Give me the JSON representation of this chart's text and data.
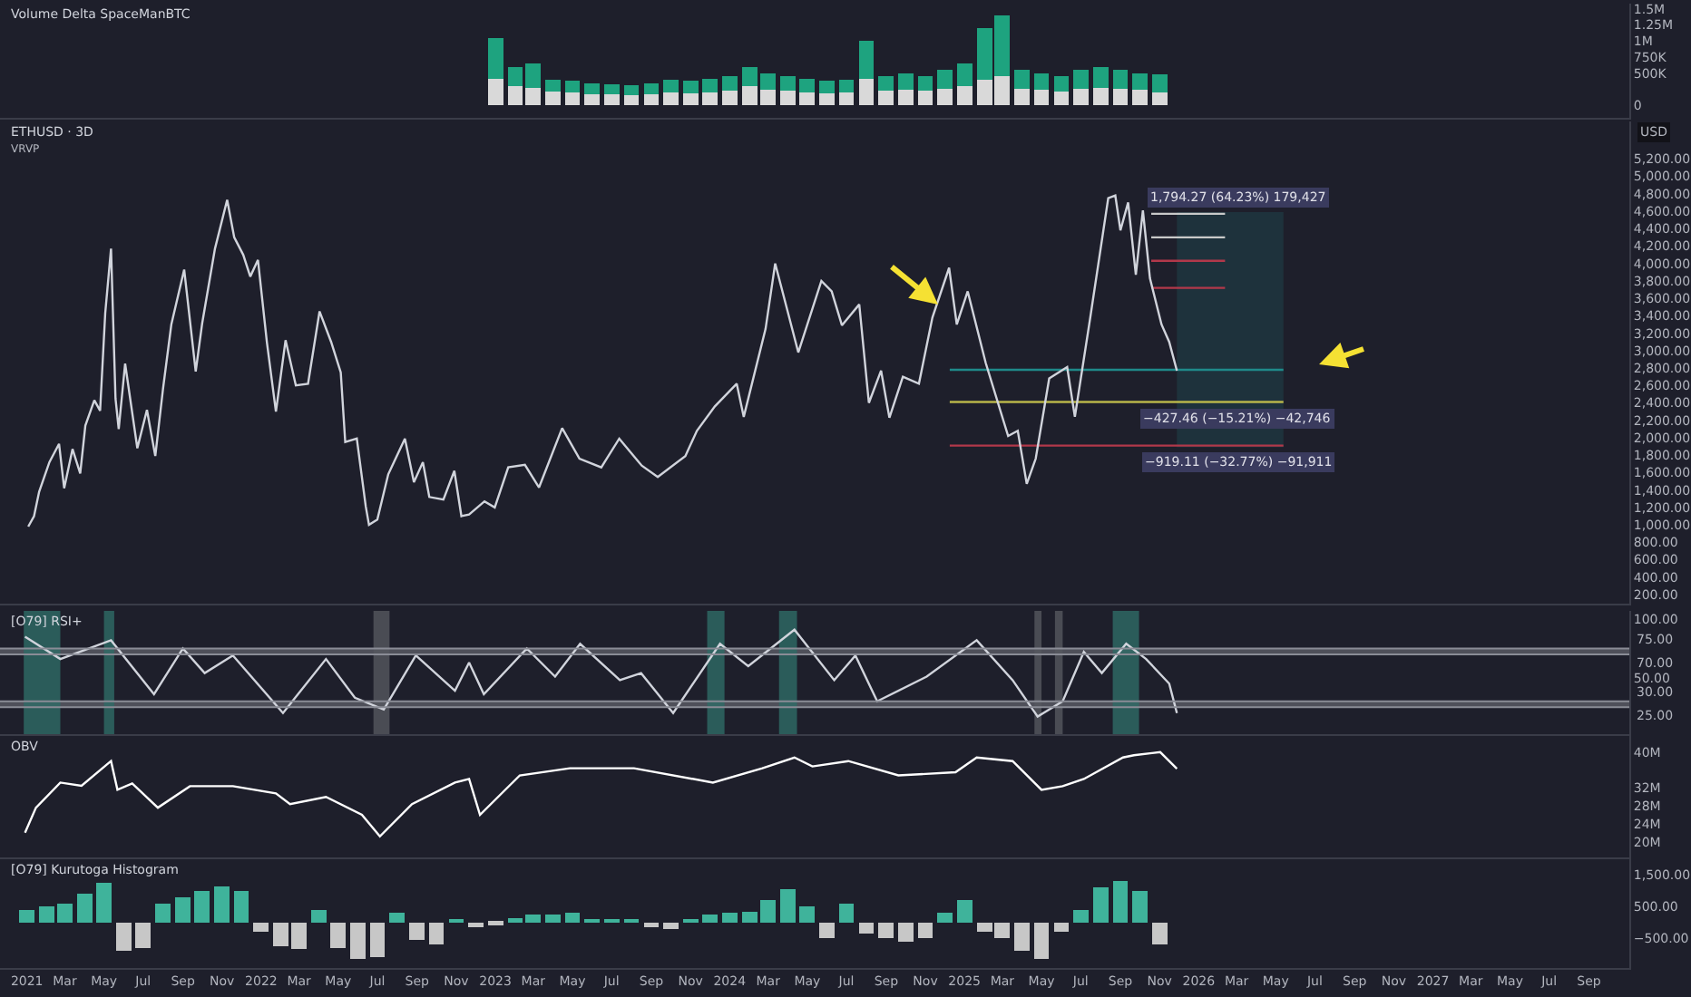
{
  "chart_data": [
    {
      "type": "bar",
      "stacked": true,
      "title": "Volume Delta SpaceManBTC",
      "xlim": [
        "2020-11-20",
        "2027-11-03"
      ],
      "tick_labels": "y",
      "ylim": [
        -190000,
        1580000
      ],
      "yticks": [
        {
          "value": 0,
          "label": "0"
        },
        {
          "value": 500000,
          "label": "500K"
        },
        {
          "value": 750000,
          "label": "750K"
        },
        {
          "value": 1000000,
          "label": "1M"
        },
        {
          "value": 1250000,
          "label": "1.25M"
        },
        {
          "value": 1500000,
          "label": "1.5M"
        }
      ],
      "x": [
        "2023-01",
        "2023-02",
        "2023-03",
        "2023-04",
        "2023-05",
        "2023-06",
        "2023-07",
        "2023-08",
        "2023-09",
        "2023-10",
        "2023-11",
        "2023-12",
        "2024-01",
        "2024-02",
        "2024-03",
        "2024-04",
        "2024-05",
        "2024-06",
        "2024-07",
        "2024-08",
        "2024-09",
        "2024-10",
        "2024-11",
        "2024-12",
        "2025-01",
        "2025-02",
        "2025-03",
        "2025-04",
        "2025-05",
        "2025-06",
        "2025-07",
        "2025-08",
        "2025-09",
        "2025-10",
        "2025-11"
      ],
      "series": [
        {
          "color": "#d9d9d9",
          "values": [
            420000,
            300000,
            280000,
            220000,
            200000,
            180000,
            170000,
            160000,
            180000,
            200000,
            190000,
            210000,
            230000,
            300000,
            250000,
            230000,
            210000,
            190000,
            200000,
            420000,
            230000,
            250000,
            230000,
            260000,
            300000,
            400000,
            450000,
            260000,
            240000,
            220000,
            260000,
            280000,
            260000,
            240000,
            210000
          ]
        },
        {
          "color": "#1ea37f",
          "values": [
            630000,
            300000,
            370000,
            180000,
            180000,
            170000,
            160000,
            160000,
            170000,
            200000,
            190000,
            210000,
            220000,
            300000,
            250000,
            220000,
            210000,
            190000,
            200000,
            580000,
            220000,
            250000,
            220000,
            290000,
            350000,
            800000,
            950000,
            290000,
            260000,
            230000,
            290000,
            320000,
            290000,
            260000,
            280000
          ]
        }
      ]
    },
    {
      "type": "line",
      "title": "ETHUSD · 3D",
      "subtitle": "VRVP",
      "ylabel": "USD",
      "xlim": [
        "2020-11-20",
        "2027-11-03"
      ],
      "tick_labels": "y",
      "ylim": [
        96,
        5630
      ],
      "yticks": [
        {
          "value": 200,
          "label": "200.00"
        },
        {
          "value": 400,
          "label": "400.00"
        },
        {
          "value": 600,
          "label": "600.00"
        },
        {
          "value": 800,
          "label": "800.00"
        },
        {
          "value": 1000,
          "label": "1,000.00"
        },
        {
          "value": 1200,
          "label": "1,200.00"
        },
        {
          "value": 1400,
          "label": "1,400.00"
        },
        {
          "value": 1600,
          "label": "1,600.00"
        },
        {
          "value": 1800,
          "label": "1,800.00"
        },
        {
          "value": 2000,
          "label": "2,000.00"
        },
        {
          "value": 2200,
          "label": "2,200.00"
        },
        {
          "value": 2400,
          "label": "2,400.00"
        },
        {
          "value": 2600,
          "label": "2,600.00"
        },
        {
          "value": 2800,
          "label": "2,800.00"
        },
        {
          "value": 3000,
          "label": "3,000.00"
        },
        {
          "value": 3200,
          "label": "3,200.00"
        },
        {
          "value": 3400,
          "label": "3,400.00"
        },
        {
          "value": 3600,
          "label": "3,600.00"
        },
        {
          "value": 3800,
          "label": "3,800.00"
        },
        {
          "value": 4000,
          "label": "4,000.00"
        },
        {
          "value": 4200,
          "label": "4,200.00"
        },
        {
          "value": 4400,
          "label": "4,400.00"
        },
        {
          "value": 4600,
          "label": "4,600.00"
        },
        {
          "value": 4800,
          "label": "4,800.00"
        },
        {
          "value": 5000,
          "label": "5,000.00"
        },
        {
          "value": 5200,
          "label": "5,200.00"
        }
      ],
      "series": [
        {
          "color": "#1f8a8a",
          "x": [
            "2024-12-09",
            "2025-11-28",
            "2026-05-13"
          ],
          "values": [
            2780,
            2780,
            2780
          ],
          "lower": [
            null,
            1890,
            1890
          ],
          "upper": [
            null,
            4590,
            4590
          ]
        },
        {
          "color": "#b9b64a",
          "x": [
            "2024-12-09",
            "2026-05-13"
          ],
          "values": [
            2410,
            2410
          ]
        },
        {
          "color": "#b2384a",
          "x": [
            "2024-12-09",
            "2026-05-13"
          ],
          "values": [
            1910,
            1910
          ]
        },
        {
          "color": "#c9c9c9",
          "x": [
            "2025-10-19",
            "2026-02-11"
          ],
          "values": [
            4570,
            4570
          ]
        },
        {
          "color": "#c9c9c9",
          "x": [
            "2025-10-19",
            "2026-02-11"
          ],
          "values": [
            4300,
            4300
          ]
        },
        {
          "color": "#b2384a",
          "x": [
            "2025-10-19",
            "2026-02-11"
          ],
          "values": [
            4030,
            4030
          ]
        },
        {
          "color": "#b2384a",
          "x": [
            "2025-10-19",
            "2026-02-11"
          ],
          "values": [
            3720,
            3720
          ]
        },
        {
          "color": "#d1d4dc",
          "x": [
            "2021-01-03",
            "2021-01-12",
            "2021-01-20",
            "2021-02-05",
            "2021-02-20",
            "2021-02-28",
            "2021-03-13",
            "2021-03-25",
            "2021-04-02",
            "2021-04-16",
            "2021-04-25",
            "2021-05-03",
            "2021-05-12",
            "2021-05-19",
            "2021-05-24",
            "2021-06-03",
            "2021-06-22",
            "2021-07-07",
            "2021-07-20",
            "2021-08-01",
            "2021-08-14",
            "2021-09-03",
            "2021-09-21",
            "2021-10-01",
            "2021-10-21",
            "2021-11-09",
            "2021-11-20",
            "2021-12-04",
            "2021-12-15",
            "2021-12-27",
            "2022-01-10",
            "2022-01-24",
            "2022-02-08",
            "2022-02-24",
            "2022-03-15",
            "2022-04-02",
            "2022-04-20",
            "2022-05-05",
            "2022-05-12",
            "2022-05-30",
            "2022-06-13",
            "2022-06-18",
            "2022-07-01",
            "2022-07-18",
            "2022-08-13",
            "2022-08-27",
            "2022-09-10",
            "2022-09-20",
            "2022-10-12",
            "2022-10-29",
            "2022-11-09",
            "2022-11-21",
            "2022-12-15",
            "2022-12-31",
            "2023-01-21",
            "2023-02-16",
            "2023-03-10",
            "2023-04-15",
            "2023-05-12",
            "2023-06-15",
            "2023-07-13",
            "2023-08-17",
            "2023-09-11",
            "2023-10-24",
            "2023-11-11",
            "2023-12-09",
            "2024-01-12",
            "2024-01-23",
            "2024-02-26",
            "2024-03-12",
            "2024-04-17",
            "2024-05-23",
            "2024-06-08",
            "2024-06-24",
            "2024-07-21",
            "2024-08-05",
            "2024-08-24",
            "2024-09-06",
            "2024-09-27",
            "2024-10-22",
            "2024-11-12",
            "2024-12-08",
            "2024-12-20",
            "2025-01-06",
            "2025-02-03",
            "2025-03-10",
            "2025-03-25",
            "2025-04-08",
            "2025-04-22",
            "2025-05-13",
            "2025-06-10",
            "2025-06-22",
            "2025-07-16",
            "2025-08-13",
            "2025-08-24",
            "2025-09-01",
            "2025-09-13",
            "2025-09-25",
            "2025-10-06",
            "2025-10-17",
            "2025-11-04",
            "2025-11-16",
            "2025-11-28"
          ],
          "values": [
            980,
            1100,
            1380,
            1720,
            1930,
            1420,
            1870,
            1590,
            2140,
            2430,
            2310,
            3430,
            4170,
            2450,
            2100,
            2850,
            1880,
            2320,
            1790,
            2560,
            3300,
            3930,
            2760,
            3310,
            4170,
            4730,
            4300,
            4100,
            3850,
            4040,
            3090,
            2300,
            3120,
            2600,
            2620,
            3450,
            3100,
            2750,
            1950,
            1990,
            1210,
            1000,
            1060,
            1580,
            1990,
            1490,
            1720,
            1320,
            1290,
            1620,
            1100,
            1120,
            1270,
            1200,
            1660,
            1690,
            1430,
            2110,
            1760,
            1660,
            1990,
            1680,
            1550,
            1790,
            2080,
            2360,
            2620,
            2240,
            3250,
            4000,
            2980,
            3800,
            3680,
            3290,
            3530,
            2400,
            2770,
            2230,
            2700,
            2620,
            3380,
            3950,
            3300,
            3680,
            2860,
            2020,
            2080,
            1470,
            1760,
            2680,
            2810,
            2240,
            3380,
            4750,
            4780,
            4380,
            4700,
            3870,
            4610,
            3830,
            3300,
            3100,
            2770
          ]
        }
      ],
      "annotations": [
        "1,794.27 (64.23%) 179,427",
        "−427.46 (−15.21%) −42,746",
        "−919.11 (−32.77%) −91,911"
      ]
    },
    {
      "type": "line",
      "title": "[O79] RSI+",
      "xlim": [
        "2020-11-20",
        "2027-11-03"
      ],
      "tick_labels": "y",
      "ylim": [
        2,
        107
      ],
      "yticks": [
        {
          "value": 100,
          "label": "100.00"
        },
        {
          "value": 50,
          "label": "50.00"
        }
      ],
      "ref_lines": [
        {
          "axis": "y",
          "value": 75,
          "label": "75.00",
          "color": "#8a8c96"
        },
        {
          "axis": "y",
          "value": 70,
          "label": "70.00",
          "color": "#8a8c96"
        },
        {
          "axis": "y",
          "value": 30,
          "label": "30.00",
          "color": "#8a8c96"
        },
        {
          "axis": "y",
          "value": 25,
          "label": "25.00",
          "color": "#8a8c96"
        }
      ],
      "bands": [
        {
          "axis": "y",
          "from": 70,
          "to": 75,
          "color": "#5b5d66"
        },
        {
          "axis": "y",
          "from": 25,
          "to": 30,
          "color": "#5b5d66"
        },
        {
          "axis": "x",
          "from": "2020-12-27",
          "to": "2021-02-22",
          "color": "#2e6b66"
        },
        {
          "axis": "x",
          "from": "2021-05-01",
          "to": "2021-05-17",
          "color": "#2e6b66"
        },
        {
          "axis": "x",
          "from": "2022-06-25",
          "to": "2022-07-20",
          "color": "#55575f"
        },
        {
          "axis": "x",
          "from": "2023-11-27",
          "to": "2023-12-24",
          "color": "#2e6b66"
        },
        {
          "axis": "x",
          "from": "2024-03-18",
          "to": "2024-04-15",
          "color": "#2e6b66"
        },
        {
          "axis": "x",
          "from": "2025-04-20",
          "to": "2025-05-01",
          "color": "#55575f"
        },
        {
          "axis": "x",
          "from": "2025-05-22",
          "to": "2025-06-03",
          "color": "#55575f"
        },
        {
          "axis": "x",
          "from": "2025-08-20",
          "to": "2025-09-30",
          "color": "#2e6b66"
        }
      ],
      "series": [
        {
          "color": "#d1d4dc",
          "x": [
            "2020-12-29",
            "2021-02-22",
            "2021-05-12",
            "2021-07-18",
            "2021-09-01",
            "2021-10-05",
            "2021-11-18",
            "2022-02-04",
            "2022-04-12",
            "2022-05-27",
            "2022-07-11",
            "2022-08-30",
            "2022-10-30",
            "2022-11-21",
            "2022-12-14",
            "2023-02-19",
            "2023-04-04",
            "2023-05-13",
            "2023-07-14",
            "2023-08-16",
            "2023-10-05",
            "2023-12-17",
            "2024-01-30",
            "2024-04-11",
            "2024-06-12",
            "2024-07-15",
            "2024-08-18",
            "2024-11-03",
            "2025-01-20",
            "2025-03-17",
            "2025-04-25",
            "2025-06-03",
            "2025-07-06",
            "2025-08-03",
            "2025-09-10",
            "2025-10-11",
            "2025-11-16",
            "2025-11-28"
          ],
          "values": [
            85,
            66,
            82,
            36,
            75,
            54,
            69,
            20,
            66,
            33,
            23,
            69,
            39,
            63,
            36,
            75,
            51,
            79,
            48,
            54,
            20,
            79,
            60,
            91,
            48,
            69,
            30,
            51,
            82,
            48,
            17,
            30,
            72,
            54,
            79,
            66,
            45,
            20
          ]
        }
      ]
    },
    {
      "type": "line",
      "title": "OBV",
      "xlim": [
        "2020-11-20",
        "2027-11-03"
      ],
      "tick_labels": "y",
      "ylim": [
        16.5,
        43.6
      ],
      "yticks": [
        {
          "value": 20,
          "label": "20M"
        },
        {
          "value": 24,
          "label": "24M"
        },
        {
          "value": 28,
          "label": "28M"
        },
        {
          "value": 32,
          "label": "32M"
        },
        {
          "value": 40,
          "label": "40M"
        }
      ],
      "series": [
        {
          "color": "#ffffff",
          "x": [
            "2020-12-29",
            "2021-01-15",
            "2021-02-22",
            "2021-03-27",
            "2021-05-12",
            "2021-05-22",
            "2021-06-14",
            "2021-07-24",
            "2021-09-12",
            "2021-11-18",
            "2022-01-24",
            "2022-02-15",
            "2022-04-12",
            "2022-06-07",
            "2022-07-05",
            "2022-08-24",
            "2022-10-30",
            "2022-11-21",
            "2022-12-08",
            "2023-02-08",
            "2023-04-27",
            "2023-08-05",
            "2023-12-06",
            "2024-02-21",
            "2024-04-11",
            "2024-05-09",
            "2024-07-04",
            "2024-09-20",
            "2024-12-18",
            "2025-01-20",
            "2025-03-17",
            "2025-05-01",
            "2025-06-03",
            "2025-07-06",
            "2025-09-05",
            "2025-09-22",
            "2025-11-02",
            "2025-11-28"
          ],
          "values": [
            22,
            27.6,
            33.2,
            32.5,
            38,
            31.6,
            33,
            27.6,
            32.4,
            32.4,
            30.8,
            28.4,
            30,
            26,
            21.2,
            28.4,
            33.2,
            34,
            26,
            34.8,
            36.4,
            36.4,
            33.2,
            36.4,
            38.8,
            36.8,
            38,
            34.8,
            35.5,
            38.8,
            38,
            31.6,
            32.4,
            34,
            38.8,
            39.3,
            40,
            36.3
          ]
        }
      ]
    },
    {
      "type": "bar",
      "title": "[O79] Kurutoga Histogram",
      "xlim": [
        "2020-11-20",
        "2027-11-03"
      ],
      "ylim": [
        -1440,
        2000
      ],
      "yticks": [
        {
          "value": 1500,
          "label": "1,500.00"
        },
        {
          "value": 500,
          "label": "500.00"
        },
        {
          "value": -500,
          "label": "−500.00"
        }
      ],
      "xticks": [
        {
          "value": "2021-01-01",
          "label": "2021"
        },
        {
          "value": "2021-03-01",
          "label": "Mar"
        },
        {
          "value": "2021-05-01",
          "label": "May"
        },
        {
          "value": "2021-07-01",
          "label": "Jul"
        },
        {
          "value": "2021-09-01",
          "label": "Sep"
        },
        {
          "value": "2021-11-01",
          "label": "Nov"
        },
        {
          "value": "2022-01-01",
          "label": "2022"
        },
        {
          "value": "2022-03-01",
          "label": "Mar"
        },
        {
          "value": "2022-05-01",
          "label": "May"
        },
        {
          "value": "2022-07-01",
          "label": "Jul"
        },
        {
          "value": "2022-09-01",
          "label": "Sep"
        },
        {
          "value": "2022-11-01",
          "label": "Nov"
        },
        {
          "value": "2023-01-01",
          "label": "2023"
        },
        {
          "value": "2023-03-01",
          "label": "Mar"
        },
        {
          "value": "2023-05-01",
          "label": "May"
        },
        {
          "value": "2023-07-01",
          "label": "Jul"
        },
        {
          "value": "2023-09-01",
          "label": "Sep"
        },
        {
          "value": "2023-11-01",
          "label": "Nov"
        },
        {
          "value": "2024-01-01",
          "label": "2024"
        },
        {
          "value": "2024-03-01",
          "label": "Mar"
        },
        {
          "value": "2024-05-01",
          "label": "May"
        },
        {
          "value": "2024-07-01",
          "label": "Jul"
        },
        {
          "value": "2024-09-01",
          "label": "Sep"
        },
        {
          "value": "2024-11-01",
          "label": "Nov"
        },
        {
          "value": "2025-01-01",
          "label": "2025"
        },
        {
          "value": "2025-03-01",
          "label": "Mar"
        },
        {
          "value": "2025-05-01",
          "label": "May"
        },
        {
          "value": "2025-07-01",
          "label": "Jul"
        },
        {
          "value": "2025-09-01",
          "label": "Sep"
        },
        {
          "value": "2025-11-01",
          "label": "Nov"
        },
        {
          "value": "2026-01-01",
          "label": "2026"
        },
        {
          "value": "2026-03-01",
          "label": "Mar"
        },
        {
          "value": "2026-05-01",
          "label": "May"
        },
        {
          "value": "2026-07-01",
          "label": "Jul"
        },
        {
          "value": "2026-09-01",
          "label": "Sep"
        },
        {
          "value": "2026-11-01",
          "label": "Nov"
        },
        {
          "value": "2027-01-01",
          "label": "2027"
        },
        {
          "value": "2027-03-01",
          "label": "Mar"
        },
        {
          "value": "2027-05-01",
          "label": "May"
        },
        {
          "value": "2027-07-01",
          "label": "Jul"
        },
        {
          "value": "2027-09-01",
          "label": "Sep"
        }
      ],
      "x": [
        "2021-01",
        "2021-02",
        "2021-03",
        "2021-04",
        "2021-05",
        "2021-06",
        "2021-07",
        "2021-08",
        "2021-09",
        "2021-10",
        "2021-11",
        "2021-12",
        "2022-01",
        "2022-02",
        "2022-03",
        "2022-04",
        "2022-05",
        "2022-06",
        "2022-07",
        "2022-08",
        "2022-09",
        "2022-10",
        "2022-11",
        "2022-12",
        "2023-01",
        "2023-02",
        "2023-03",
        "2023-04",
        "2023-05",
        "2023-06",
        "2023-07",
        "2023-08",
        "2023-09",
        "2023-10",
        "2023-11",
        "2023-12",
        "2024-01",
        "2024-02",
        "2024-03",
        "2024-04",
        "2024-05",
        "2024-06",
        "2024-07",
        "2024-08",
        "2024-09",
        "2024-10",
        "2024-11",
        "2024-12",
        "2025-01",
        "2025-02",
        "2025-03",
        "2025-04",
        "2025-05",
        "2025-06",
        "2025-07",
        "2025-08",
        "2025-09",
        "2025-10",
        "2025-11"
      ],
      "values": [
        400,
        500,
        600,
        900,
        1250,
        -900,
        -800,
        600,
        800,
        1000,
        1150,
        1000,
        -300,
        -750,
        -850,
        400,
        -800,
        -1150,
        -1100,
        300,
        -550,
        -700,
        100,
        -150,
        -100,
        150,
        250,
        250,
        300,
        100,
        80,
        60,
        -150,
        -200,
        100,
        250,
        300,
        350,
        700,
        1050,
        500,
        -500,
        600,
        -350,
        -500,
        -600,
        -500,
        300,
        700,
        -300,
        -500,
        -900,
        -1150,
        -300,
        400,
        1100,
        1300,
        1000,
        -700
      ],
      "colors": [
        "#3fb39b",
        "#3fb39b",
        "#3fb39b",
        "#3fb39b",
        "#3fb39b",
        "#c7c7c7",
        "#c7c7c7",
        "#3fb39b",
        "#3fb39b",
        "#3fb39b",
        "#3fb39b",
        "#3fb39b",
        "#c7c7c7",
        "#c7c7c7",
        "#c7c7c7",
        "#3fb39b",
        "#c7c7c7",
        "#c7c7c7",
        "#c7c7c7",
        "#3fb39b",
        "#c7c7c7",
        "#c7c7c7",
        "#3fb39b",
        "#c7c7c7",
        "#c7c7c7",
        "#3fb39b",
        "#3fb39b",
        "#3fb39b",
        "#3fb39b",
        "#3fb39b",
        "#3fb39b",
        "#3fb39b",
        "#c7c7c7",
        "#c7c7c7",
        "#3fb39b",
        "#3fb39b",
        "#3fb39b",
        "#3fb39b",
        "#3fb39b",
        "#3fb39b",
        "#3fb39b",
        "#c7c7c7",
        "#3fb39b",
        "#c7c7c7",
        "#c7c7c7",
        "#c7c7c7",
        "#c7c7c7",
        "#3fb39b",
        "#3fb39b",
        "#c7c7c7",
        "#c7c7c7",
        "#c7c7c7",
        "#c7c7c7",
        "#c7c7c7",
        "#3fb39b",
        "#3fb39b",
        "#3fb39b",
        "#3fb39b",
        "#c7c7c7"
      ]
    }
  ]
}
